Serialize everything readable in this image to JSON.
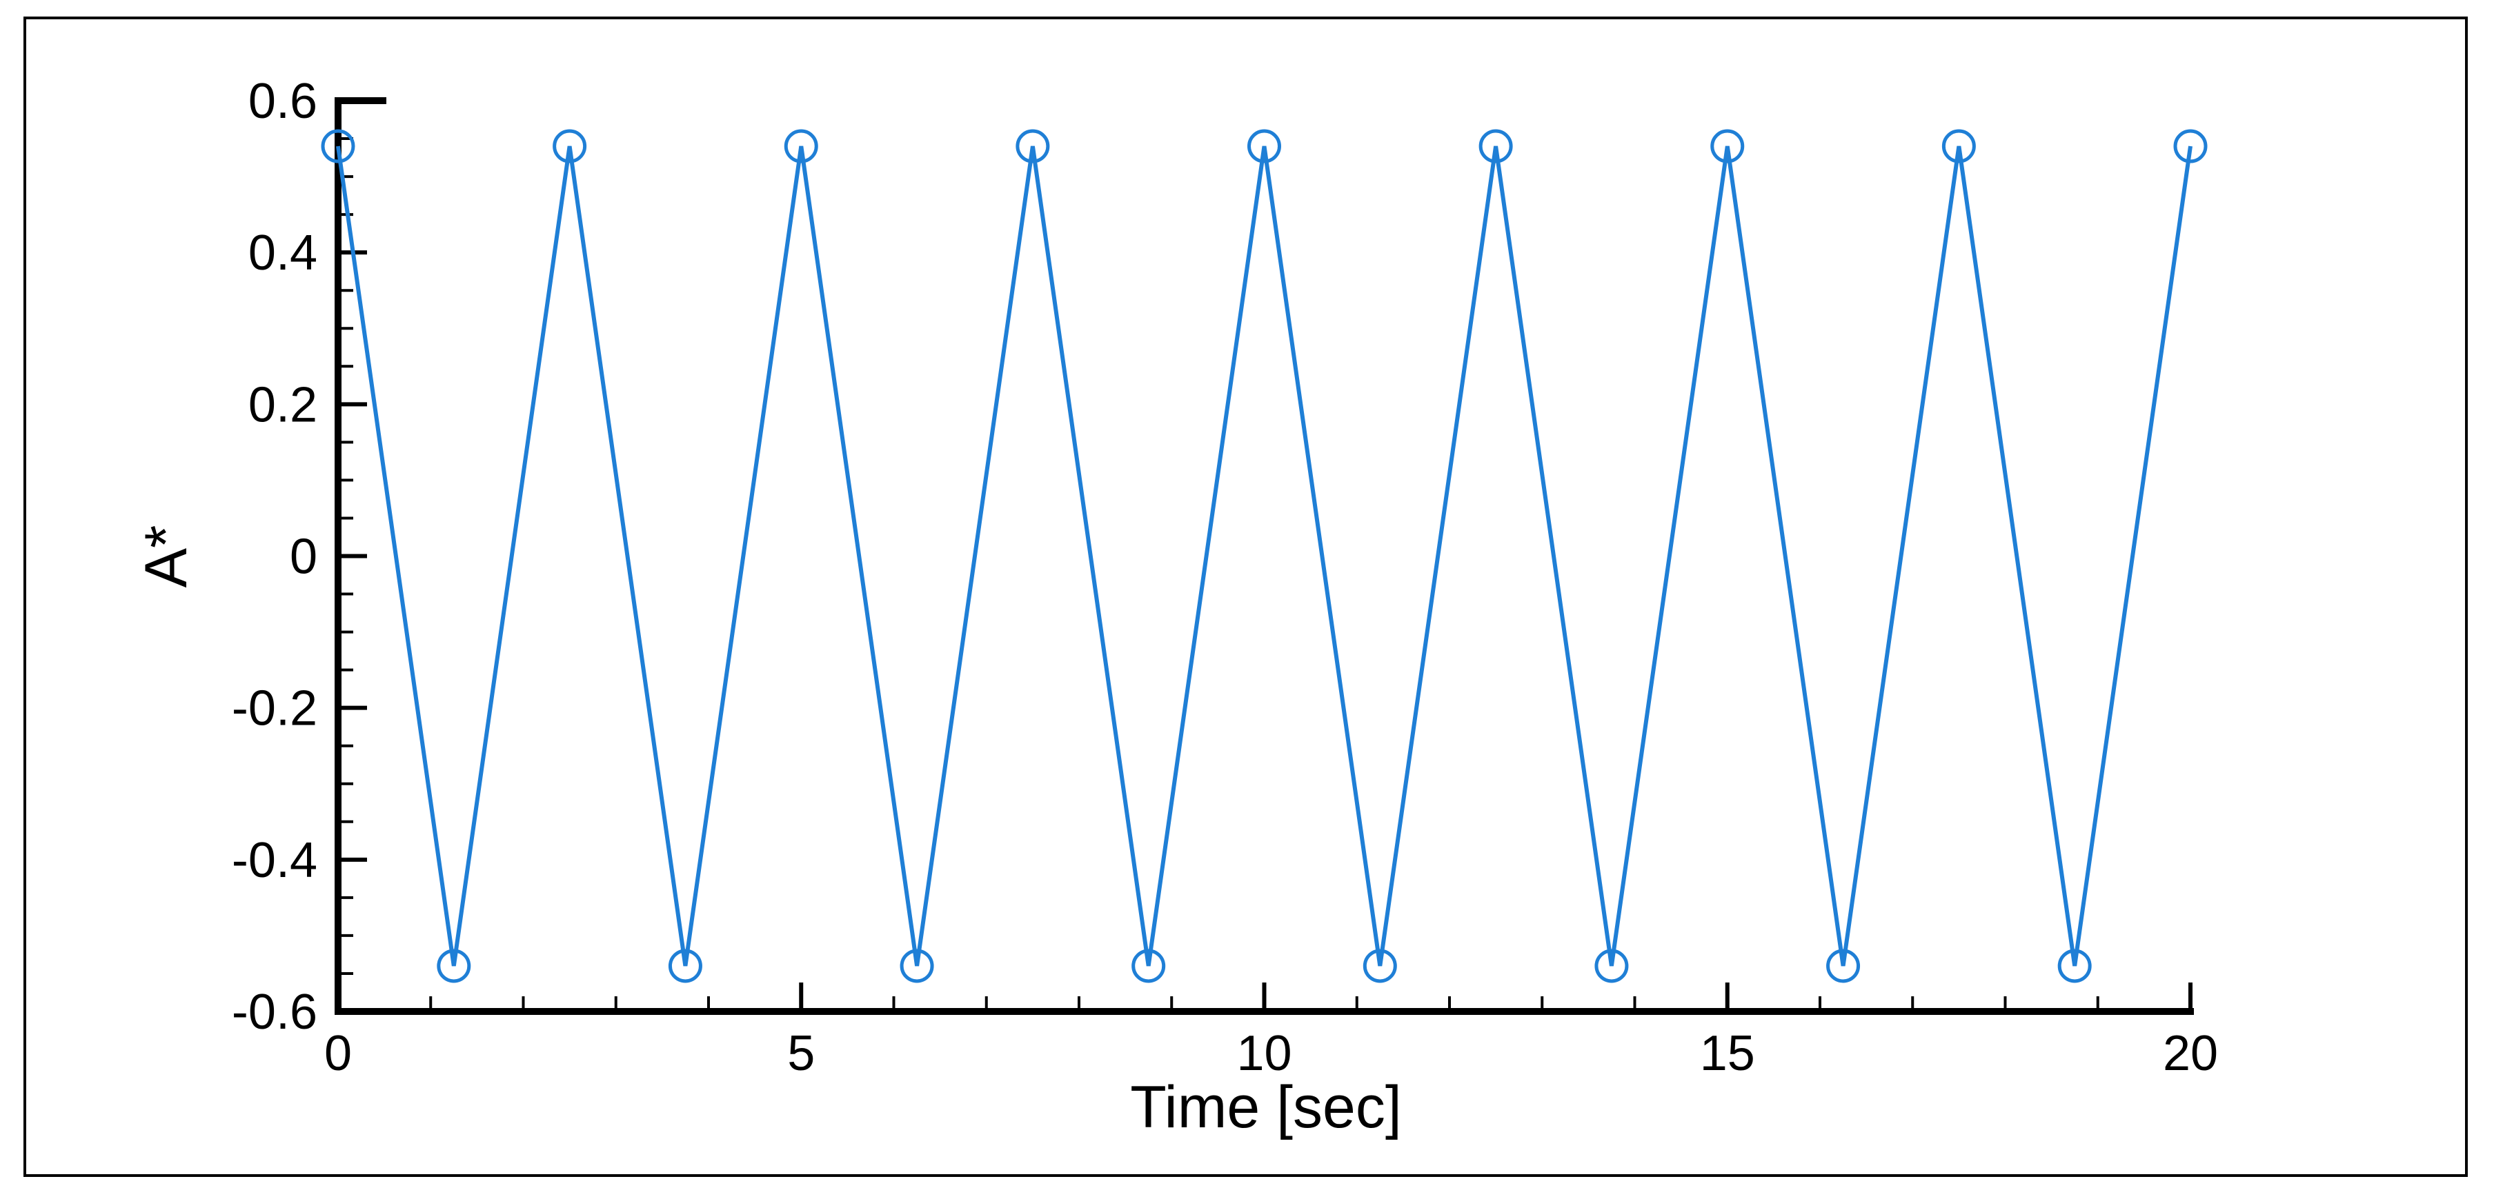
{
  "chart_data": {
    "type": "line",
    "title": "",
    "xlabel": "Time [sec]",
    "ylabel": "A*",
    "xlim": [
      0,
      20
    ],
    "ylim": [
      -0.6,
      0.6
    ],
    "x_ticks": [
      0,
      5,
      10,
      15,
      20
    ],
    "x_tick_labels": [
      "0",
      "5",
      "10",
      "15",
      "20"
    ],
    "y_ticks": [
      -0.6,
      -0.4,
      -0.2,
      0,
      0.2,
      0.4,
      0.6
    ],
    "y_tick_labels": [
      "-0.6",
      "-0.4",
      "-0.2",
      "0",
      "0.2",
      "0.4",
      "0.6"
    ],
    "grid": false,
    "legend": "none",
    "series": [
      {
        "color": "#1f7fd6",
        "marker": "circle-open",
        "x": [
          0,
          1.25,
          2.5,
          3.75,
          5,
          6.25,
          7.5,
          8.75,
          10,
          11.25,
          12.5,
          13.75,
          15,
          16.25,
          17.5,
          18.75,
          20
        ],
        "y": [
          0.54,
          -0.54,
          0.54,
          -0.54,
          0.54,
          -0.54,
          0.54,
          -0.54,
          0.54,
          -0.54,
          0.54,
          -0.54,
          0.54,
          -0.54,
          0.54,
          -0.54,
          0.54
        ]
      }
    ]
  }
}
